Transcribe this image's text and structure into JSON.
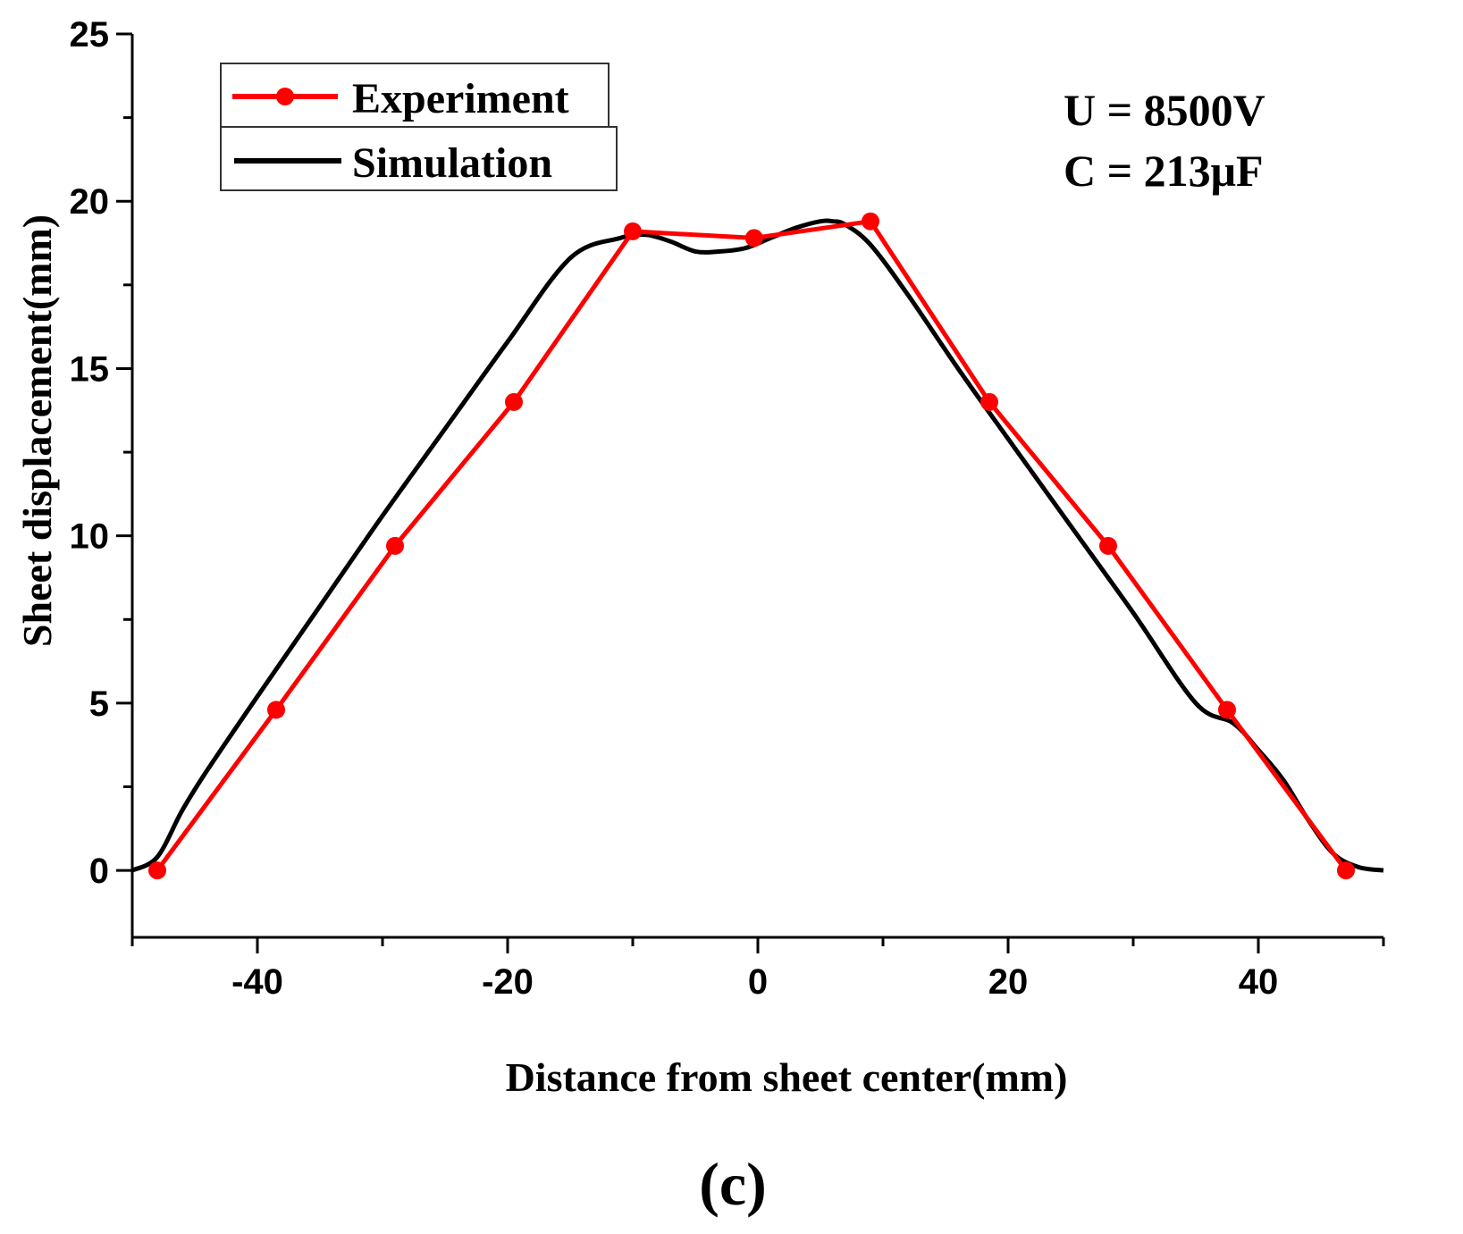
{
  "chart_data": {
    "type": "line",
    "xlabel": "Distance from sheet center(mm)",
    "ylabel": "Sheet displacement(mm)",
    "xlim": [
      -50,
      50
    ],
    "ylim": [
      -2,
      25
    ],
    "x_ticks": [
      -40,
      -20,
      0,
      20,
      40
    ],
    "x_tick_labels": [
      "-40",
      "-20",
      "0",
      "20",
      "40"
    ],
    "y_ticks": [
      0,
      5,
      10,
      15,
      20,
      25
    ],
    "y_tick_labels": [
      "0",
      "5",
      "10",
      "15",
      "20",
      "25"
    ],
    "grid": false,
    "legend_position": "top-left",
    "annotations": [
      "U = 8500V",
      "C = 213μF"
    ],
    "panel_label": "(c)",
    "series": [
      {
        "name": "Experiment",
        "color": "#ff0000",
        "marker": "circle",
        "x": [
          -48,
          -38.5,
          -29,
          -19.5,
          -10,
          -0.3,
          9,
          18.5,
          28,
          37.5,
          47
        ],
        "y": [
          0,
          4.8,
          9.7,
          14,
          19.1,
          18.9,
          19.4,
          14,
          9.7,
          4.8,
          0
        ]
      },
      {
        "name": "Simulation",
        "color": "#000000",
        "marker": "none",
        "x": [
          -50,
          -48,
          -46,
          -44,
          -40,
          -35,
          -30,
          -25,
          -20,
          -15,
          -11,
          -9,
          -7,
          -5,
          -3,
          -1,
          1,
          3,
          5,
          6,
          7,
          9,
          12,
          16,
          20,
          25,
          30,
          35,
          38,
          40,
          42,
          44,
          46,
          48,
          50
        ],
        "y": [
          0,
          0.4,
          1.8,
          3.0,
          5.2,
          7.9,
          10.6,
          13.2,
          15.8,
          18.3,
          18.9,
          19.0,
          18.8,
          18.5,
          18.5,
          18.6,
          18.9,
          19.2,
          19.4,
          19.4,
          19.3,
          18.7,
          17.2,
          15.0,
          12.9,
          10.3,
          7.7,
          5.0,
          4.4,
          3.6,
          2.7,
          1.5,
          0.5,
          0.1,
          0
        ]
      }
    ]
  }
}
